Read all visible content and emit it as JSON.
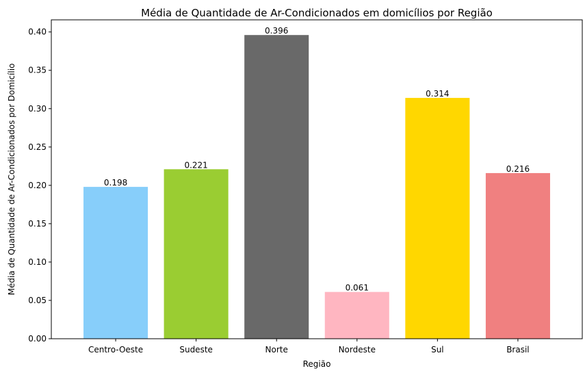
{
  "chart_data": {
    "type": "bar",
    "title": "Média de Quantidade de Ar-Condicionados em domicílios por Região",
    "xlabel": "Região",
    "ylabel": "Média de Quantidade de Ar-Condicionados por Domicílio",
    "categories": [
      "Centro-Oeste",
      "Sudeste",
      "Norte",
      "Nordeste",
      "Sul",
      "Brasil"
    ],
    "values": [
      0.198,
      0.221,
      0.396,
      0.061,
      0.314,
      0.216
    ],
    "data_labels": [
      "0.198",
      "0.221",
      "0.396",
      "0.061",
      "0.314",
      "0.216"
    ],
    "colors": [
      "#87CEFA",
      "#9ACD32",
      "#696969",
      "#FFB6C1",
      "#FFD700",
      "#F08080"
    ],
    "ylim": [
      0,
      0.4158
    ],
    "yticks": [
      0.0,
      0.05,
      0.1,
      0.15,
      0.2,
      0.25,
      0.3,
      0.35,
      0.4
    ],
    "ytick_labels": [
      "0.00",
      "0.05",
      "0.10",
      "0.15",
      "0.20",
      "0.25",
      "0.30",
      "0.35",
      "0.40"
    ],
    "grid": false,
    "legend": "none"
  }
}
